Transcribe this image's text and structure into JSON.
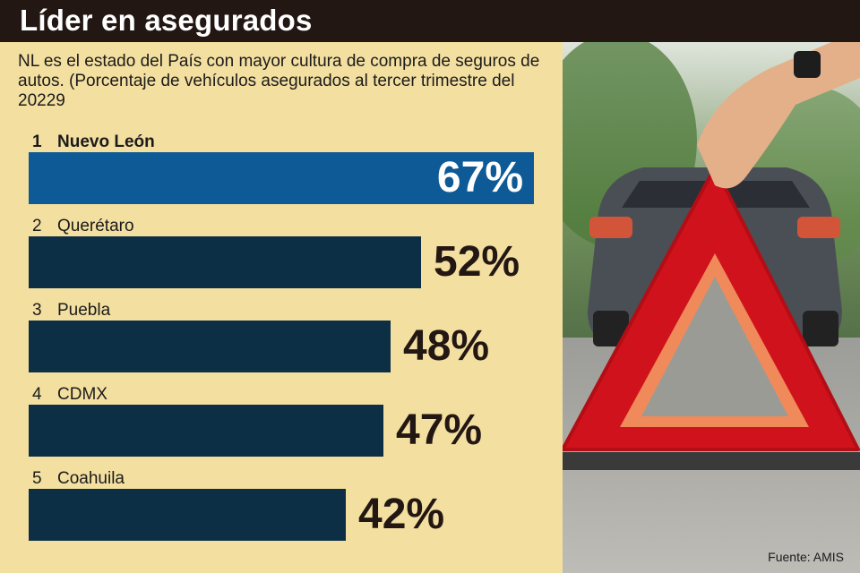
{
  "header": {
    "title": "Líder en asegurados",
    "subtitle": "NL es el estado del País con mayor cultura de compra de seguros de autos. (Porcentaje de vehículos asegurados al tercer trimestre del 20229"
  },
  "chart_data": {
    "type": "bar",
    "orientation": "horizontal",
    "title": "Líder en asegurados",
    "ylabel": "Porcentaje de vehículos asegurados",
    "xlim": [
      0,
      100
    ],
    "categories": [
      "Nuevo León",
      "Querétaro",
      "Puebla",
      "CDMX",
      "Coahuila"
    ],
    "ranks": [
      "1",
      "2",
      "3",
      "4",
      "5"
    ],
    "values": [
      67,
      52,
      48,
      47,
      42
    ],
    "value_labels": [
      "67%",
      "52%",
      "48%",
      "47%",
      "42%"
    ],
    "highlight_index": 0
  },
  "colors": {
    "background": "#f3dfa0",
    "title_bar": "#231714",
    "highlight_bar": "#0d5a96",
    "bar": "#0d2f45"
  },
  "footer": {
    "source": "Fuente: AMIS"
  },
  "photo": {
    "icon": "warning-triangle-icon"
  }
}
